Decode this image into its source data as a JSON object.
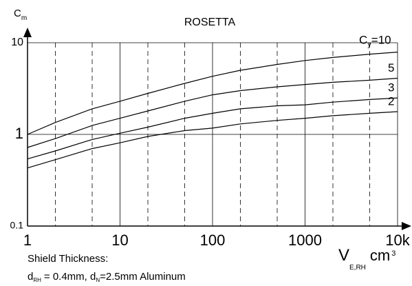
{
  "chart_data": {
    "type": "line",
    "title": "ROSETTA",
    "y_label": {
      "main": "C",
      "sub": "m"
    },
    "x_label": {
      "main": "V",
      "sub": "E,RH",
      "unit": "cm",
      "sup": "3"
    },
    "series_prefix": {
      "main": "C",
      "sub": "y",
      "eq": "="
    },
    "footnote": {
      "line1": "Shield Thickness:",
      "d1": "d",
      "d1_sub": "RH",
      "mid": "= 0.4mm, d",
      "d2_sub": "N",
      "end": "=2.5mm Aluminum"
    },
    "x": [
      1,
      2,
      5,
      10,
      20,
      50,
      100,
      200,
      500,
      1000,
      2000,
      5000,
      10000
    ],
    "series": [
      {
        "name": "10",
        "color": "#000000",
        "values": [
          1.0,
          1.35,
          1.9,
          2.3,
          2.8,
          3.6,
          4.3,
          5.0,
          5.8,
          6.4,
          6.9,
          7.5,
          7.9
        ]
      },
      {
        "name": "5",
        "color": "#000000",
        "values": [
          0.72,
          0.9,
          1.25,
          1.5,
          1.8,
          2.3,
          2.7,
          3.0,
          3.3,
          3.5,
          3.7,
          3.9,
          4.1
        ]
      },
      {
        "name": "3",
        "color": "#000000",
        "values": [
          0.54,
          0.66,
          0.88,
          1.03,
          1.2,
          1.5,
          1.7,
          1.9,
          2.05,
          2.1,
          2.25,
          2.4,
          2.5
        ]
      },
      {
        "name": "2",
        "color": "#000000",
        "values": [
          0.43,
          0.53,
          0.7,
          0.81,
          0.95,
          1.1,
          1.17,
          1.3,
          1.42,
          1.5,
          1.6,
          1.7,
          1.77
        ]
      }
    ],
    "xlim": [
      1,
      10000
    ],
    "ylim": [
      0.1,
      10
    ],
    "xticks": [
      1,
      10,
      100,
      1000,
      {
        "value": 10000,
        "label": "10k"
      }
    ],
    "xminorticks": [
      2,
      5,
      20,
      50,
      200,
      500,
      2000,
      5000
    ],
    "yticks": [
      0.1,
      1,
      10
    ],
    "log_x": true,
    "log_y": true,
    "grid": true
  }
}
